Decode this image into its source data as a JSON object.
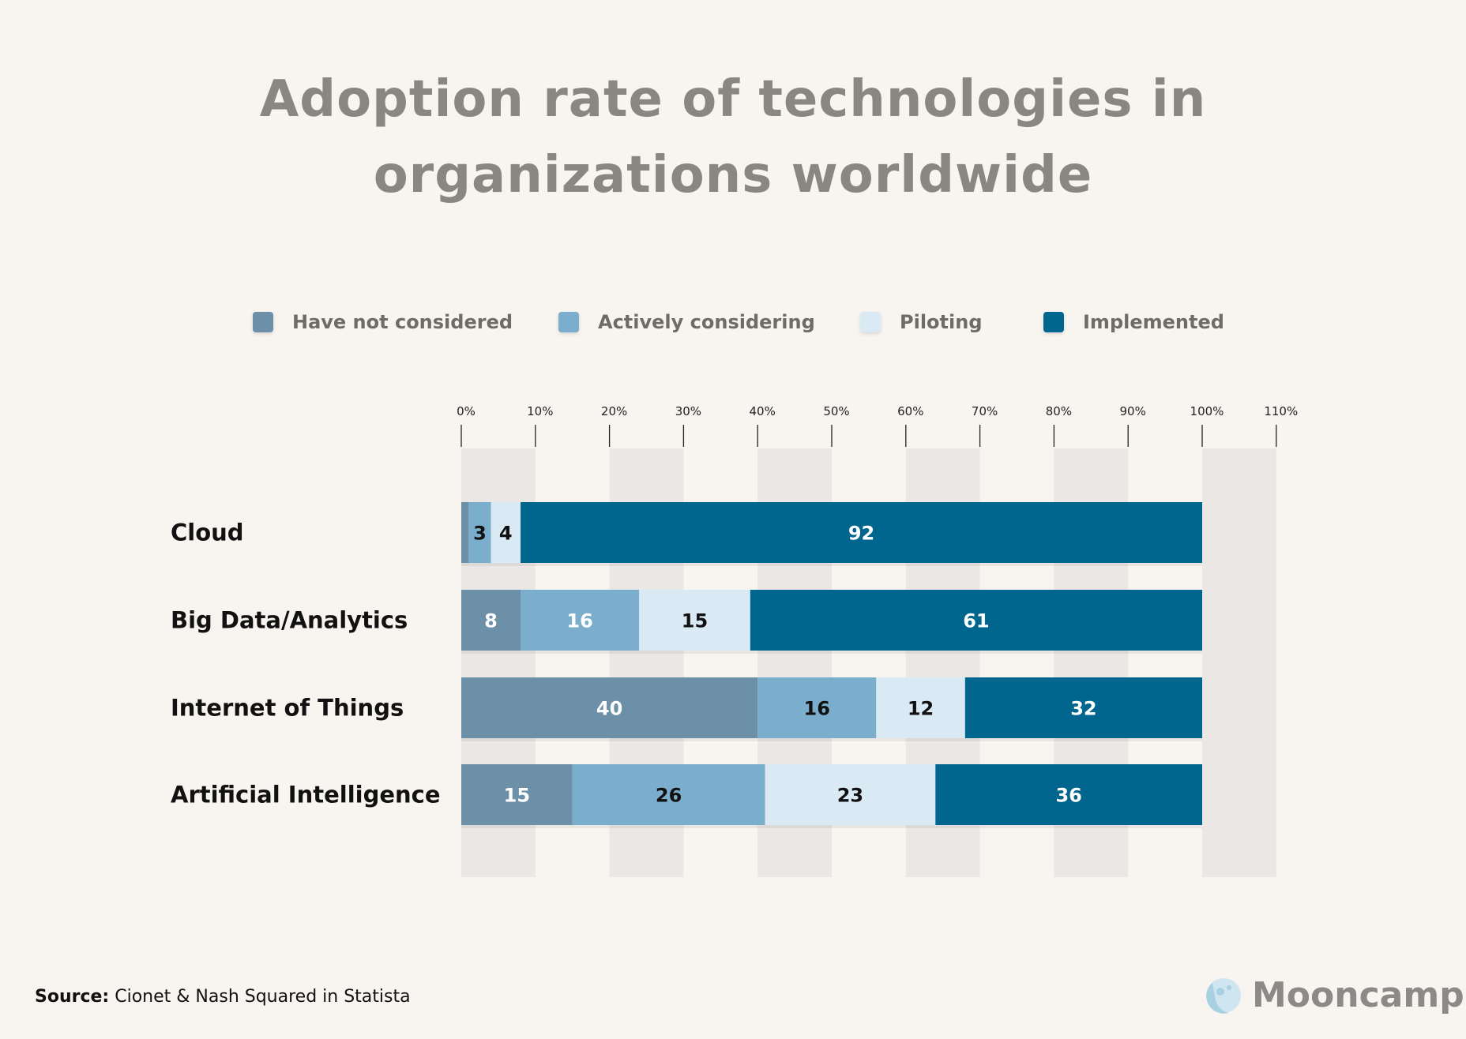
{
  "title_line1": "Adoption rate of technologies in",
  "title_line2": "organizations worldwide",
  "source": {
    "label": "Source:",
    "text": "Cionet & Nash Squared in Statista"
  },
  "logo": {
    "text": "Mooncamp"
  },
  "chart_data": {
    "type": "bar",
    "orientation": "horizontal",
    "stacked": true,
    "title": "Adoption rate of technologies in organizations worldwide",
    "categories": [
      "Cloud",
      "Big Data/Analytics",
      "Internet of Things",
      "Artificial Intelligence"
    ],
    "series": [
      {
        "name": "Have not considered",
        "color": "#6b90a8",
        "values": [
          1,
          8,
          40,
          15
        ]
      },
      {
        "name": "Actively considering",
        "color": "#7badcd",
        "values": [
          3,
          16,
          16,
          26
        ]
      },
      {
        "name": "Piloting",
        "color": "#d9eaf5",
        "values": [
          4,
          15,
          12,
          23
        ]
      },
      {
        "name": "Implemented",
        "color": "#00668e",
        "values": [
          92,
          61,
          32,
          36
        ]
      }
    ],
    "xlim": [
      0,
      110
    ],
    "xticks": [
      "0%",
      "10%",
      "20%",
      "30%",
      "40%",
      "50%",
      "60%",
      "70%",
      "80%",
      "90%",
      "100%",
      "110%"
    ],
    "legend_position": "top",
    "grid": "alternating vertical bands"
  }
}
